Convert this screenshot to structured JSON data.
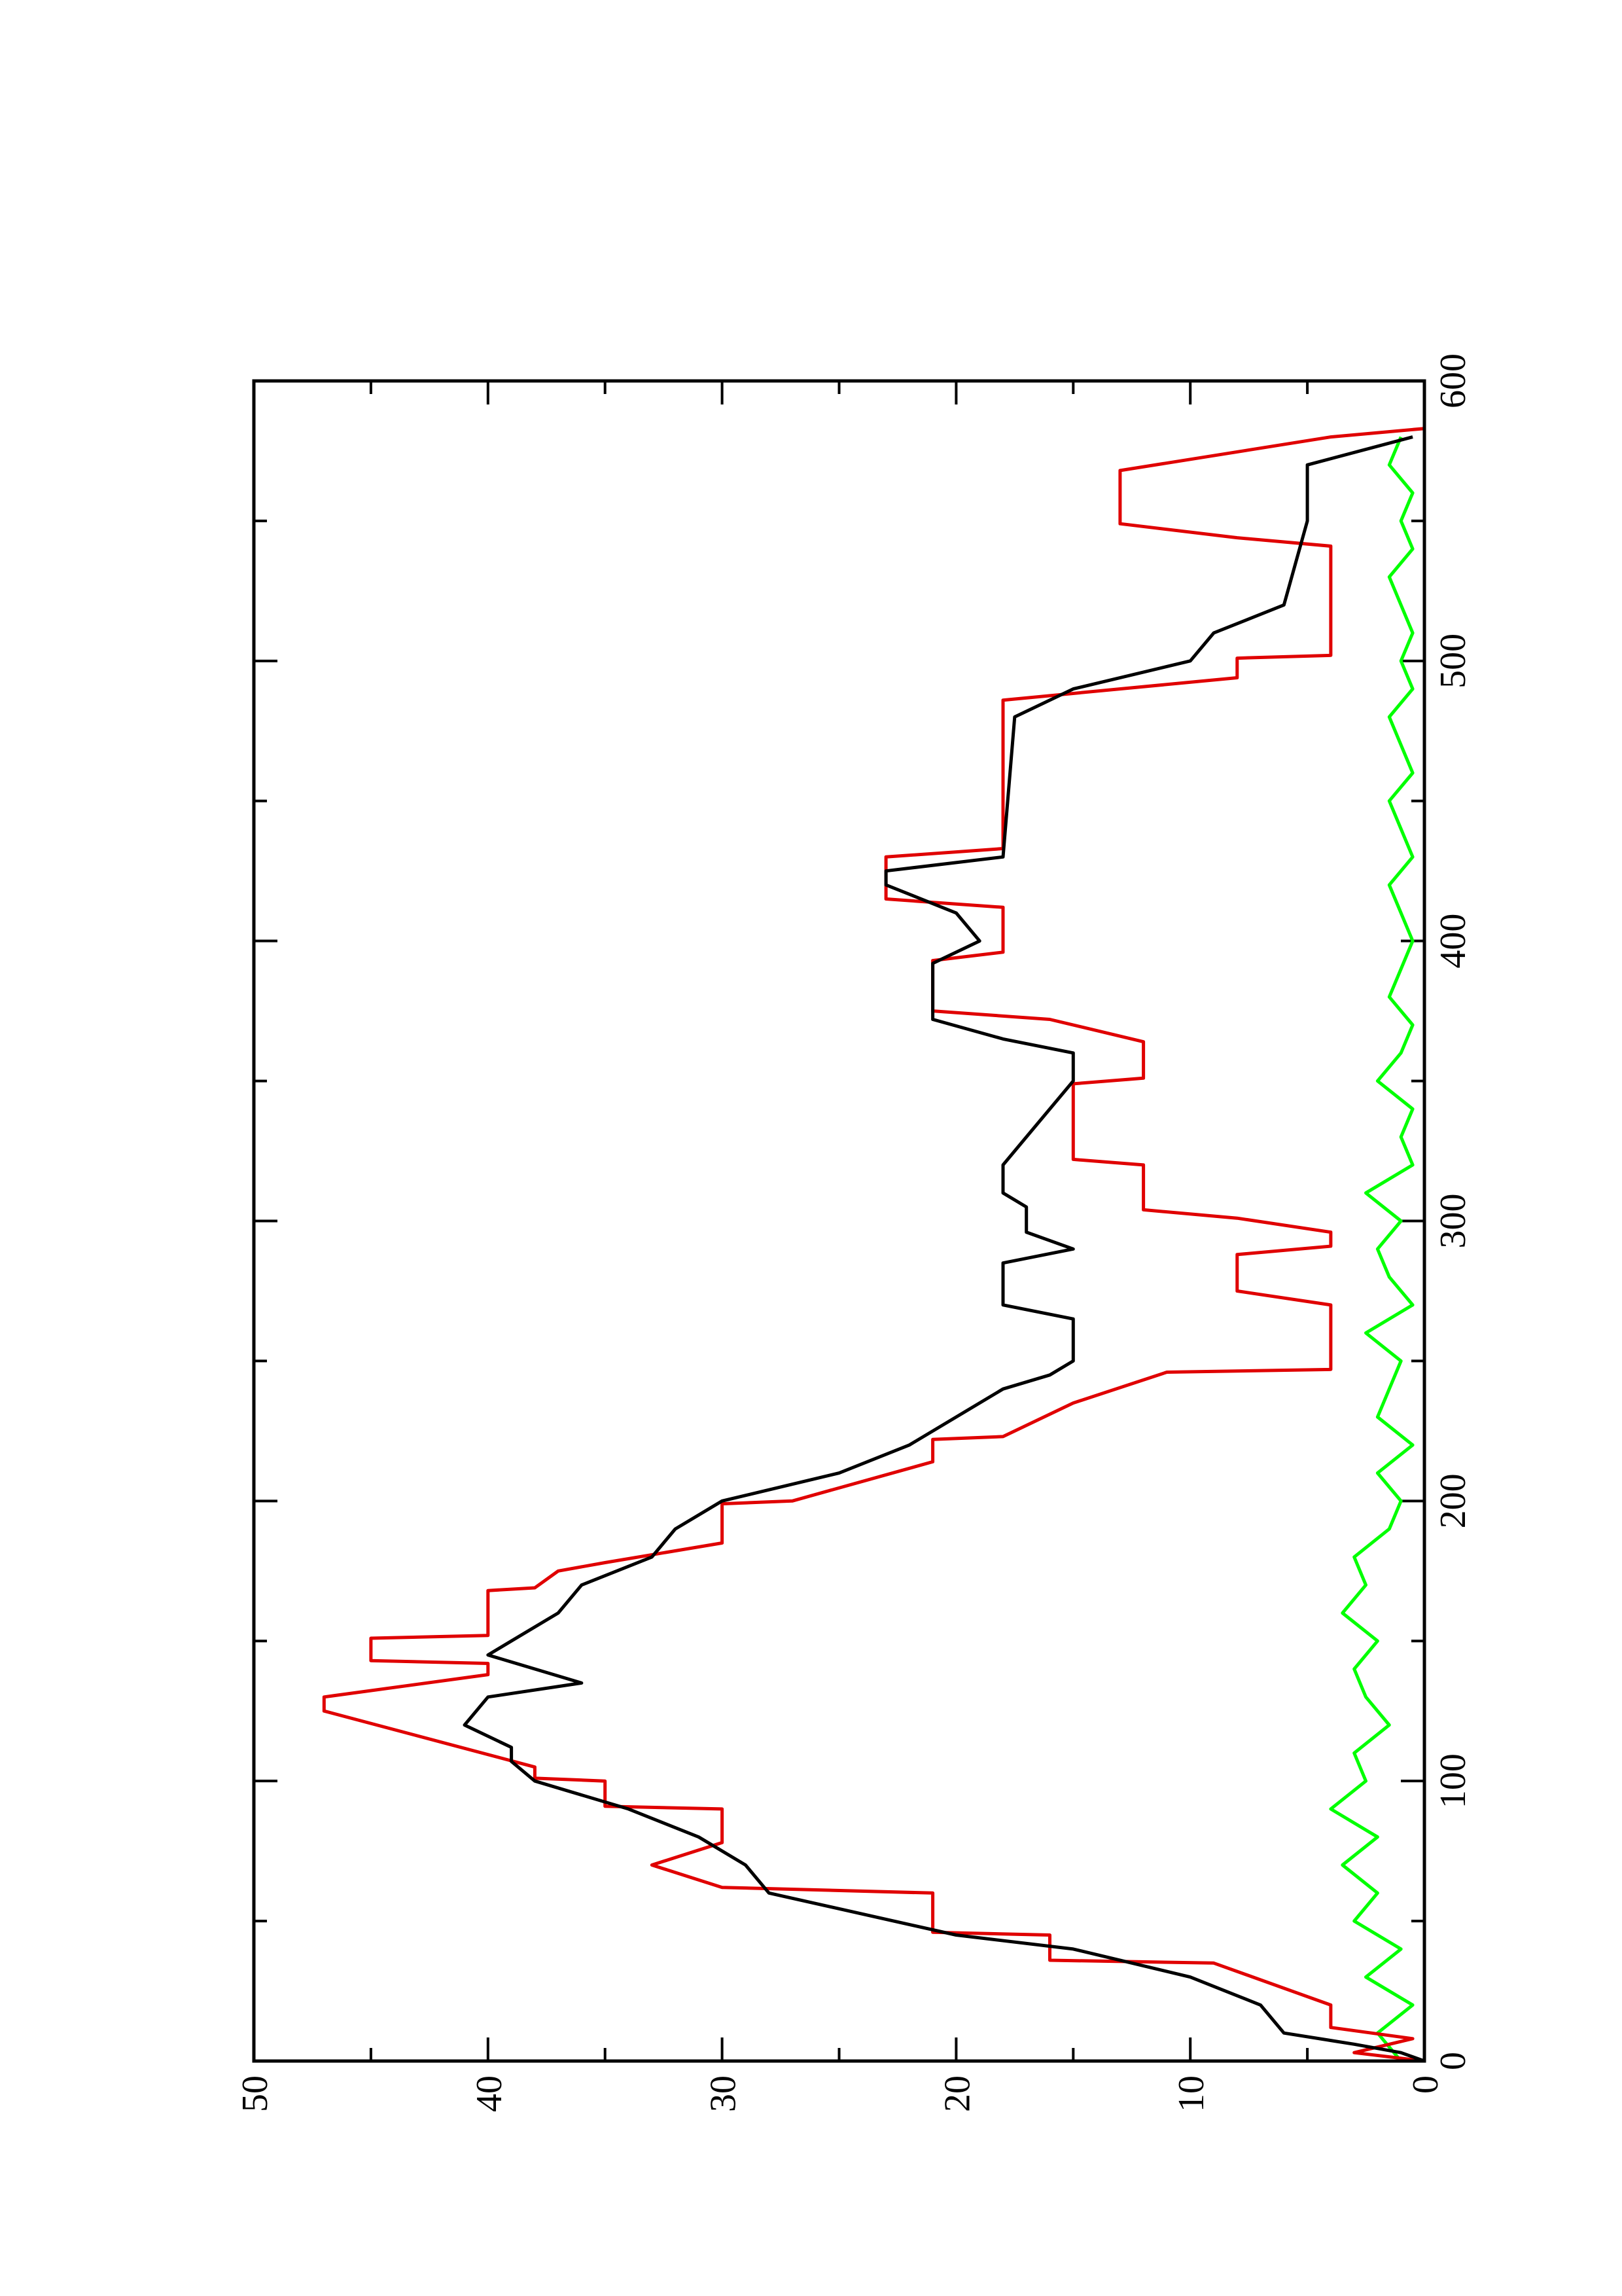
{
  "chart_data": {
    "type": "line",
    "xlim": [
      0,
      600
    ],
    "xticks": [
      0,
      100,
      200,
      300,
      400,
      500,
      600
    ],
    "xticks_minor": [
      50,
      150,
      250,
      350,
      450,
      550
    ],
    "ylim": [
      0,
      50
    ],
    "yticks": [
      0,
      10,
      20,
      30,
      40,
      50
    ],
    "yticks_minor": [
      5,
      15,
      25,
      35,
      45
    ],
    "series": [
      {
        "color": "#00ff00",
        "x": [
          0,
          10,
          20,
          30,
          40,
          50,
          60,
          70,
          80,
          90,
          100,
          110,
          120,
          130,
          140,
          150,
          160,
          170,
          180,
          190,
          200,
          210,
          220,
          230,
          240,
          250,
          260,
          270,
          280,
          290,
          300,
          310,
          320,
          330,
          340,
          350,
          360,
          370,
          380,
          390,
          400,
          410,
          420,
          430,
          440,
          450,
          460,
          470,
          480,
          490,
          500,
          510,
          520,
          530,
          540,
          550,
          560,
          570,
          580
        ],
        "values": [
          1,
          2,
          0.5,
          2.5,
          1,
          3,
          2,
          3.5,
          2,
          4,
          2.5,
          3,
          1.5,
          2.5,
          3,
          2,
          3.5,
          2.5,
          3,
          1.5,
          1,
          2,
          0.5,
          2,
          1.5,
          1,
          2.5,
          0.5,
          1.5,
          2,
          1,
          2.5,
          0.5,
          1,
          0.5,
          2,
          1,
          0.5,
          1.5,
          1,
          0.5,
          1,
          1.5,
          0.5,
          1,
          1.5,
          0.5,
          1,
          1.5,
          0.5,
          1,
          0.5,
          1,
          1.5,
          0.5,
          1,
          0.5,
          1.5,
          1
        ]
      },
      {
        "color": "#e00000",
        "x": [
          0,
          3,
          8,
          12,
          20,
          35,
          36,
          45,
          46,
          60,
          62,
          70,
          78,
          90,
          91,
          100,
          101,
          105,
          125,
          130,
          138,
          142,
          143,
          151,
          152,
          168,
          169,
          175,
          178,
          185,
          199,
          200,
          214,
          222,
          223,
          235,
          246,
          247,
          270,
          275,
          288,
          291,
          296,
          301,
          304,
          320,
          322,
          349,
          351,
          364,
          372,
          375,
          393,
          396,
          412,
          415,
          430,
          433,
          486,
          494,
          501,
          502,
          541,
          544,
          549,
          568,
          580,
          583
        ],
        "values": [
          0,
          3,
          0.5,
          4,
          4,
          9,
          16,
          16,
          21,
          21,
          30,
          33,
          30,
          30,
          35,
          35,
          38,
          38,
          47,
          47,
          40,
          40,
          45,
          45,
          40,
          40,
          38,
          37,
          35,
          30,
          30,
          27,
          21,
          21,
          18,
          15,
          11,
          4,
          4,
          8,
          8,
          4,
          4,
          8,
          12,
          12,
          15,
          15,
          12,
          12,
          16,
          21,
          21,
          18,
          18,
          23,
          23,
          18,
          18,
          8,
          8,
          4,
          4,
          8,
          13,
          13,
          4,
          0
        ]
      },
      {
        "color": "#000000",
        "x": [
          0,
          3,
          6,
          10,
          20,
          30,
          40,
          45,
          60,
          70,
          80,
          90,
          100,
          107,
          112,
          120,
          130,
          135,
          140,
          145,
          150,
          160,
          170,
          180,
          190,
          200,
          210,
          220,
          230,
          240,
          245,
          250,
          265,
          270,
          285,
          290,
          296,
          305,
          310,
          320,
          330,
          340,
          350,
          360,
          365,
          372,
          392,
          400,
          410,
          420,
          425,
          430,
          480,
          490,
          500,
          510,
          520,
          535,
          550,
          570,
          580
        ],
        "values": [
          0,
          1,
          3,
          6,
          7,
          10,
          15,
          20,
          28,
          29,
          31,
          34,
          38,
          39,
          39,
          41,
          40,
          36,
          38,
          40,
          39,
          37,
          36,
          33,
          32,
          30,
          25,
          22,
          20,
          18,
          16,
          15,
          15,
          18,
          18,
          15,
          17,
          17,
          18,
          18,
          17,
          16,
          15,
          15,
          18,
          21,
          21,
          19,
          20,
          23,
          23,
          18,
          17.5,
          15,
          10,
          9,
          6,
          5.5,
          5,
          5,
          0.5
        ]
      }
    ]
  }
}
